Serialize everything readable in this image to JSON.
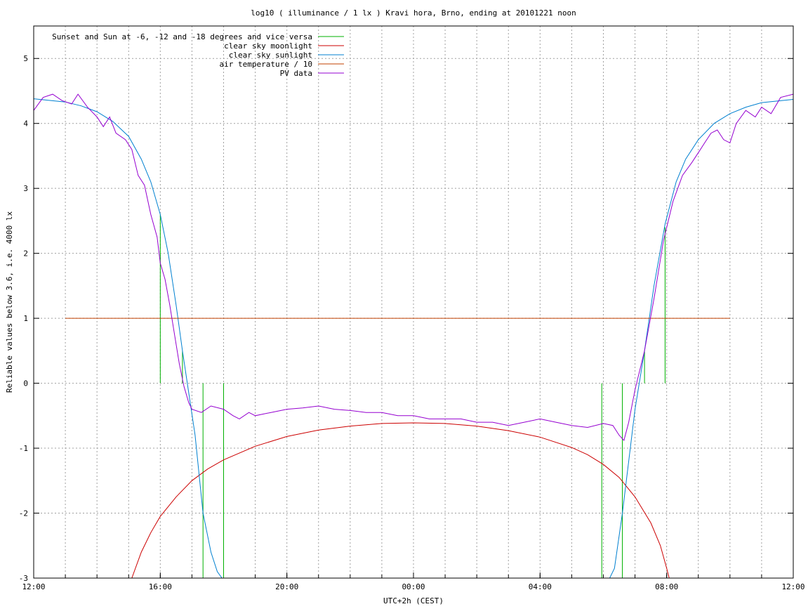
{
  "chart_data": {
    "type": "line",
    "title": "log10 ( illuminance / 1 lx ) Kravi hora, Brno, ending at 20101221 noon",
    "xlabel": "UTC+2h (CEST)",
    "ylabel": "Reliable values below 3.6, i.e. 4000 lx",
    "x_unit": "hours after 12:00 (UTC+2h)",
    "xlim": [
      0,
      24
    ],
    "ylim": [
      -3,
      5.5
    ],
    "grid": true,
    "legend_position": "top-left",
    "x_ticks": [
      {
        "x": 0,
        "label": "12:00"
      },
      {
        "x": 4,
        "label": "16:00"
      },
      {
        "x": 8,
        "label": "20:00"
      },
      {
        "x": 12,
        "label": "00:00"
      },
      {
        "x": 16,
        "label": "04:00"
      },
      {
        "x": 20,
        "label": "08:00"
      },
      {
        "x": 24,
        "label": "12:00"
      }
    ],
    "x_minor_step": 1,
    "y_ticks": [
      {
        "y": -3,
        "label": "-3"
      },
      {
        "y": -2,
        "label": "-2"
      },
      {
        "y": -1,
        "label": "-1"
      },
      {
        "y": 0,
        "label": "0"
      },
      {
        "y": 1,
        "label": "1"
      },
      {
        "y": 2,
        "label": "2"
      },
      {
        "y": 3,
        "label": "3"
      },
      {
        "y": 4,
        "label": "4"
      },
      {
        "y": 5,
        "label": "5"
      }
    ],
    "series": [
      {
        "name": "Sunset and Sun at -6, -12 and -18 degrees and vice versa",
        "kind": "impulses",
        "color": "#00b000",
        "points": [
          [
            4.0,
            2.6
          ],
          [
            4.7,
            0.5
          ],
          [
            5.35,
            0
          ],
          [
            6.0,
            0
          ],
          [
            17.95,
            0
          ],
          [
            18.6,
            0
          ],
          [
            19.3,
            0.5
          ],
          [
            19.95,
            2.4
          ]
        ]
      },
      {
        "name": "clear sky moonlight",
        "color": "#cc0000",
        "points": [
          [
            3.1,
            -3.0
          ],
          [
            3.4,
            -2.6
          ],
          [
            3.7,
            -2.3
          ],
          [
            4.0,
            -2.05
          ],
          [
            4.5,
            -1.75
          ],
          [
            5.0,
            -1.5
          ],
          [
            5.5,
            -1.32
          ],
          [
            6.0,
            -1.18
          ],
          [
            7.0,
            -0.97
          ],
          [
            8.0,
            -0.82
          ],
          [
            9.0,
            -0.72
          ],
          [
            10.0,
            -0.66
          ],
          [
            11.0,
            -0.62
          ],
          [
            12.0,
            -0.61
          ],
          [
            13.0,
            -0.62
          ],
          [
            14.0,
            -0.66
          ],
          [
            15.0,
            -0.73
          ],
          [
            16.0,
            -0.83
          ],
          [
            17.0,
            -0.99
          ],
          [
            17.5,
            -1.1
          ],
          [
            18.0,
            -1.25
          ],
          [
            18.5,
            -1.45
          ],
          [
            19.0,
            -1.75
          ],
          [
            19.5,
            -2.15
          ],
          [
            19.8,
            -2.5
          ],
          [
            20.0,
            -2.85
          ],
          [
            20.08,
            -3.0
          ]
        ]
      },
      {
        "name": "clear sky sunlight",
        "color": "#0080d0",
        "points": [
          [
            0.0,
            4.38
          ],
          [
            1.0,
            4.33
          ],
          [
            1.5,
            4.27
          ],
          [
            2.0,
            4.18
          ],
          [
            2.5,
            4.03
          ],
          [
            3.0,
            3.8
          ],
          [
            3.4,
            3.45
          ],
          [
            3.7,
            3.1
          ],
          [
            4.0,
            2.6
          ],
          [
            4.25,
            2.0
          ],
          [
            4.5,
            1.2
          ],
          [
            4.7,
            0.5
          ],
          [
            4.9,
            -0.15
          ],
          [
            5.1,
            -0.8
          ],
          [
            5.35,
            -2.0
          ],
          [
            5.6,
            -2.6
          ],
          [
            5.8,
            -2.9
          ],
          [
            5.95,
            -3.0
          ],
          [
            18.2,
            -3.0
          ],
          [
            18.35,
            -2.85
          ],
          [
            18.6,
            -2.0
          ],
          [
            18.8,
            -1.2
          ],
          [
            19.0,
            -0.4
          ],
          [
            19.3,
            0.5
          ],
          [
            19.6,
            1.5
          ],
          [
            19.95,
            2.45
          ],
          [
            20.3,
            3.1
          ],
          [
            20.6,
            3.45
          ],
          [
            21.0,
            3.75
          ],
          [
            21.5,
            4.0
          ],
          [
            22.0,
            4.15
          ],
          [
            22.5,
            4.25
          ],
          [
            23.0,
            4.32
          ],
          [
            24.0,
            4.37
          ]
        ]
      },
      {
        "name": "air temperature / 10",
        "color": "#c04000",
        "points": [
          [
            1.0,
            1.0
          ],
          [
            22.0,
            1.0
          ]
        ]
      },
      {
        "name": "PV data",
        "color": "#9500d0",
        "points": [
          [
            0.0,
            4.2
          ],
          [
            0.3,
            4.4
          ],
          [
            0.6,
            4.45
          ],
          [
            0.9,
            4.35
          ],
          [
            1.2,
            4.3
          ],
          [
            1.4,
            4.45
          ],
          [
            1.7,
            4.25
          ],
          [
            2.0,
            4.1
          ],
          [
            2.2,
            3.95
          ],
          [
            2.4,
            4.1
          ],
          [
            2.6,
            3.85
          ],
          [
            2.9,
            3.75
          ],
          [
            3.1,
            3.6
          ],
          [
            3.3,
            3.2
          ],
          [
            3.5,
            3.05
          ],
          [
            3.7,
            2.6
          ],
          [
            3.9,
            2.25
          ],
          [
            4.0,
            1.85
          ],
          [
            4.15,
            1.6
          ],
          [
            4.3,
            1.2
          ],
          [
            4.45,
            0.75
          ],
          [
            4.6,
            0.3
          ],
          [
            4.75,
            -0.05
          ],
          [
            4.9,
            -0.3
          ],
          [
            5.0,
            -0.4
          ],
          [
            5.3,
            -0.45
          ],
          [
            5.6,
            -0.35
          ],
          [
            6.0,
            -0.4
          ],
          [
            6.3,
            -0.5
          ],
          [
            6.5,
            -0.55
          ],
          [
            6.8,
            -0.45
          ],
          [
            7.0,
            -0.5
          ],
          [
            7.5,
            -0.45
          ],
          [
            8.0,
            -0.4
          ],
          [
            8.5,
            -0.38
          ],
          [
            9.0,
            -0.35
          ],
          [
            9.5,
            -0.4
          ],
          [
            10.0,
            -0.42
          ],
          [
            10.5,
            -0.45
          ],
          [
            11.0,
            -0.45
          ],
          [
            11.5,
            -0.5
          ],
          [
            12.0,
            -0.5
          ],
          [
            12.5,
            -0.55
          ],
          [
            13.0,
            -0.55
          ],
          [
            13.5,
            -0.55
          ],
          [
            14.0,
            -0.6
          ],
          [
            14.5,
            -0.6
          ],
          [
            15.0,
            -0.65
          ],
          [
            15.5,
            -0.6
          ],
          [
            16.0,
            -0.55
          ],
          [
            16.5,
            -0.6
          ],
          [
            17.0,
            -0.65
          ],
          [
            17.5,
            -0.68
          ],
          [
            18.0,
            -0.62
          ],
          [
            18.3,
            -0.65
          ],
          [
            18.5,
            -0.8
          ],
          [
            18.65,
            -0.88
          ],
          [
            18.8,
            -0.6
          ],
          [
            19.0,
            -0.1
          ],
          [
            19.3,
            0.5
          ],
          [
            19.6,
            1.3
          ],
          [
            19.9,
            2.2
          ],
          [
            20.2,
            2.8
          ],
          [
            20.5,
            3.2
          ],
          [
            20.8,
            3.4
          ],
          [
            21.0,
            3.55
          ],
          [
            21.2,
            3.7
          ],
          [
            21.4,
            3.85
          ],
          [
            21.6,
            3.9
          ],
          [
            21.8,
            3.75
          ],
          [
            22.0,
            3.7
          ],
          [
            22.2,
            4.0
          ],
          [
            22.5,
            4.2
          ],
          [
            22.8,
            4.1
          ],
          [
            23.0,
            4.25
          ],
          [
            23.3,
            4.15
          ],
          [
            23.6,
            4.4
          ],
          [
            24.0,
            4.45
          ]
        ]
      }
    ]
  }
}
